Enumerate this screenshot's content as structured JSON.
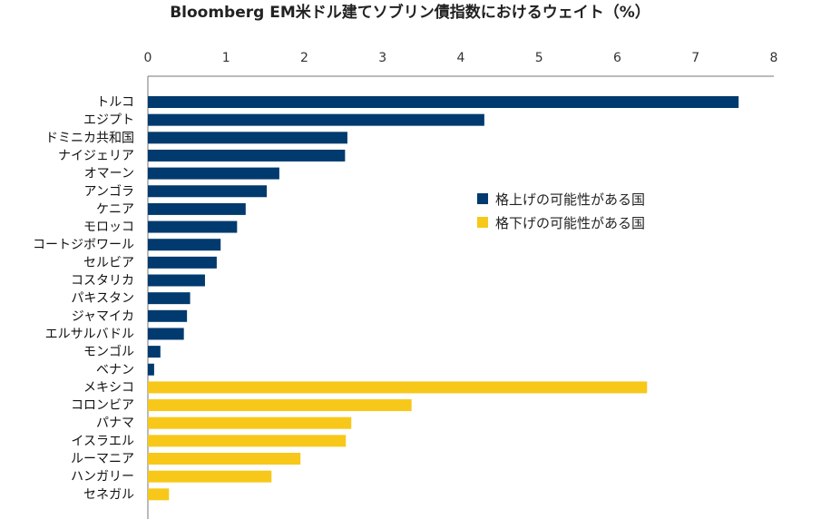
{
  "chart_data": {
    "type": "bar",
    "orientation": "horizontal",
    "title": "Bloomberg EM米ドル建てソブリン債指数におけるウェイト（%）",
    "xlim": [
      0,
      8
    ],
    "xticks": [
      "0",
      "1",
      "2",
      "3",
      "4",
      "5",
      "6",
      "7",
      "8"
    ],
    "x_axis_position": "top",
    "grid": false,
    "legend_position": "middle-right",
    "categories": [
      "トルコ",
      "エジプト",
      "ドミニカ共和国",
      "ナイジェリア",
      "オマーン",
      "アンゴラ",
      "ケニア",
      "モロッコ",
      "コートジボワール",
      "セルビア",
      "コスタリカ",
      "パキスタン",
      "ジャマイカ",
      "エルサルバドル",
      "モンゴル",
      "ベナン",
      "メキシコ",
      "コロンビア",
      "パナマ",
      "イスラエル",
      "ルーマニア",
      "ハンガリー",
      "セネガル"
    ],
    "series": [
      {
        "name": "格上げの可能性がある国",
        "color": "#003a6e",
        "values": [
          7.55,
          4.3,
          2.55,
          2.52,
          1.68,
          1.52,
          1.25,
          1.14,
          0.93,
          0.88,
          0.73,
          0.54,
          0.5,
          0.46,
          0.16,
          0.08,
          null,
          null,
          null,
          null,
          null,
          null,
          null
        ]
      },
      {
        "name": "格下げの可能性がある国",
        "color": "#f7c819",
        "values": [
          null,
          null,
          null,
          null,
          null,
          null,
          null,
          null,
          null,
          null,
          null,
          null,
          null,
          null,
          null,
          null,
          6.38,
          3.37,
          2.6,
          2.53,
          1.95,
          1.58,
          0.27
        ]
      }
    ]
  }
}
